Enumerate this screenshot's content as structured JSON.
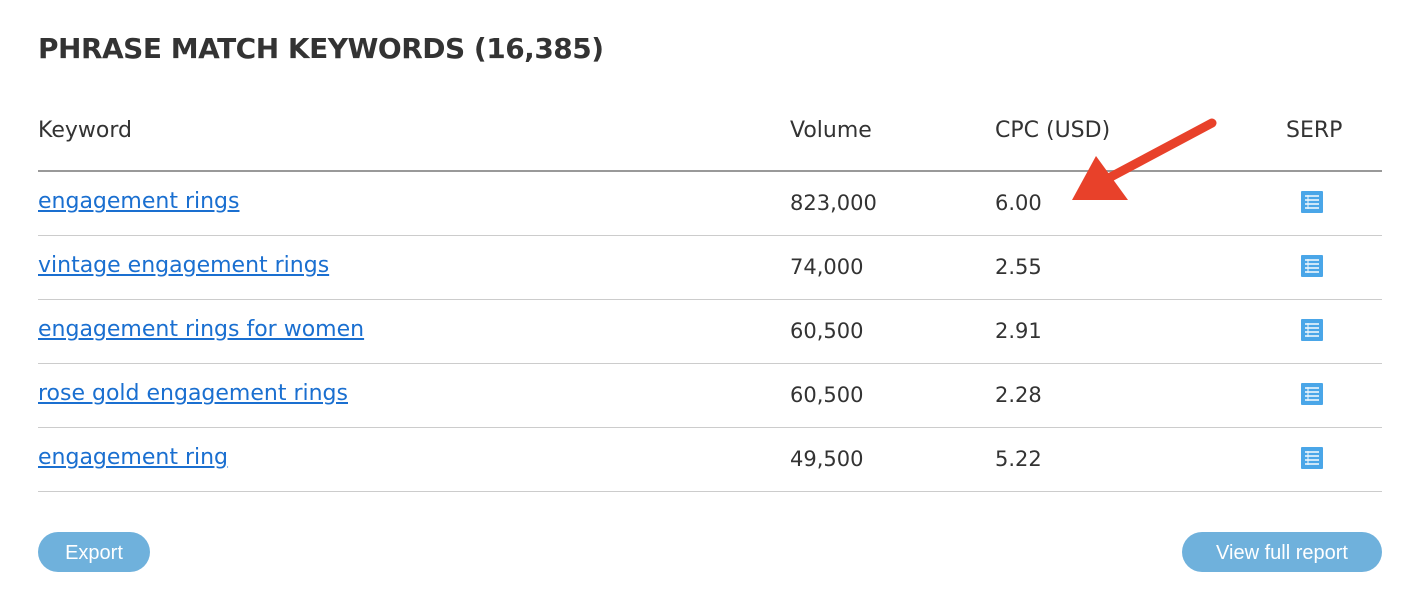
{
  "title": "PHRASE MATCH KEYWORDS (16,385)",
  "columns": {
    "keyword": "Keyword",
    "volume": "Volume",
    "cpc": "CPC (USD)",
    "serp": "SERP"
  },
  "rows": [
    {
      "keyword": "engagement rings",
      "volume": "823,000",
      "cpc": "6.00"
    },
    {
      "keyword": "vintage engagement rings",
      "volume": "74,000",
      "cpc": "2.55"
    },
    {
      "keyword": "engagement rings for women",
      "volume": "60,500",
      "cpc": "2.91"
    },
    {
      "keyword": "rose gold engagement rings",
      "volume": "60,500",
      "cpc": "2.28"
    },
    {
      "keyword": "engagement ring",
      "volume": "49,500",
      "cpc": "5.22"
    }
  ],
  "buttons": {
    "export": "Export",
    "full_report": "View full report"
  },
  "icons": {
    "serp": "serp-list-icon",
    "annotation": "red-arrow"
  },
  "colors": {
    "link": "#1a6fd0",
    "button": "#6fb1dc",
    "icon": "#4aa6e8",
    "arrow": "#e8412a"
  }
}
